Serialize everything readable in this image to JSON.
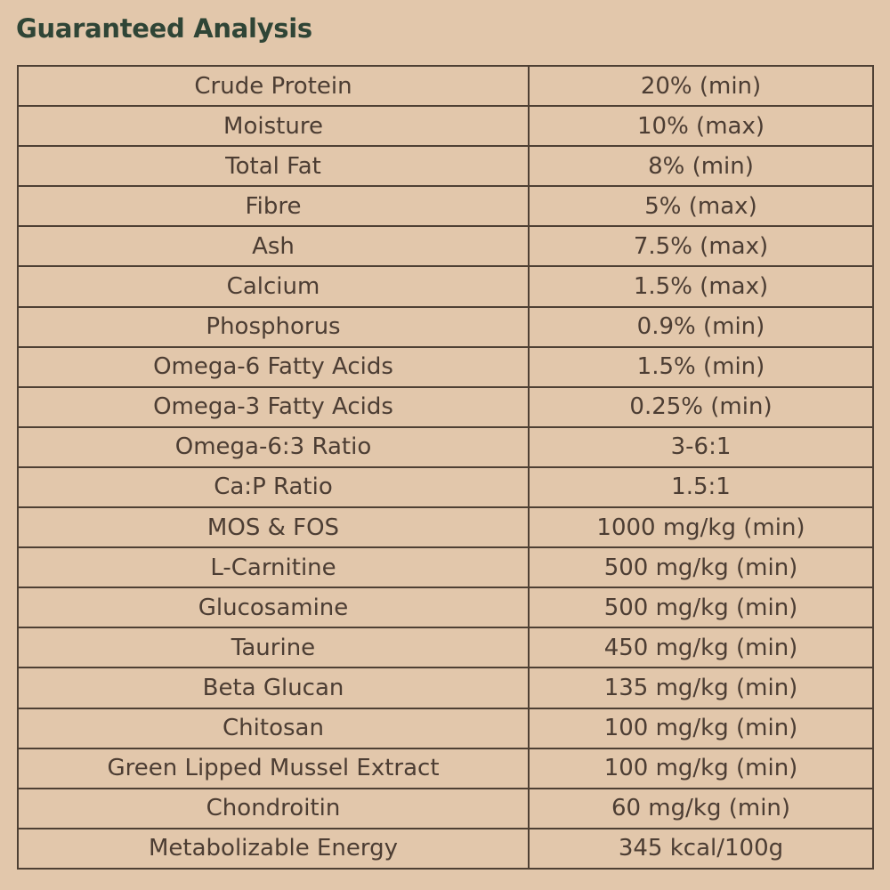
{
  "title": "Guaranteed Analysis",
  "rows": [
    {
      "nutrient": "Crude Protein",
      "value": "20% (min)"
    },
    {
      "nutrient": "Moisture",
      "value": "10% (max)"
    },
    {
      "nutrient": "Total Fat",
      "value": "8% (min)"
    },
    {
      "nutrient": "Fibre",
      "value": "5% (max)"
    },
    {
      "nutrient": "Ash",
      "value": "7.5% (max)"
    },
    {
      "nutrient": "Calcium",
      "value": "1.5% (max)"
    },
    {
      "nutrient": "Phosphorus",
      "value": "0.9% (min)"
    },
    {
      "nutrient": "Omega-6 Fatty Acids",
      "value": "1.5% (min)"
    },
    {
      "nutrient": "Omega-3 Fatty Acids",
      "value": "0.25% (min)"
    },
    {
      "nutrient": "Omega-6:3 Ratio",
      "value": "3-6:1"
    },
    {
      "nutrient": "Ca:P Ratio",
      "value": "1.5:1"
    },
    {
      "nutrient": "MOS & FOS",
      "value": "1000 mg/kg (min)"
    },
    {
      "nutrient": "L-Carnitine",
      "value": "500 mg/kg (min)"
    },
    {
      "nutrient": "Glucosamine",
      "value": "500 mg/kg (min)"
    },
    {
      "nutrient": "Taurine",
      "value": "450 mg/kg (min)"
    },
    {
      "nutrient": "Beta Glucan",
      "value": "135 mg/kg (min)"
    },
    {
      "nutrient": "Chitosan",
      "value": "100 mg/kg (min)"
    },
    {
      "nutrient": "Green Lipped Mussel Extract",
      "value": "100 mg/kg (min)"
    },
    {
      "nutrient": "Chondroitin",
      "value": "60 mg/kg (min)"
    },
    {
      "nutrient": "Metabolizable Energy",
      "value": "345 kcal/100g"
    }
  ]
}
